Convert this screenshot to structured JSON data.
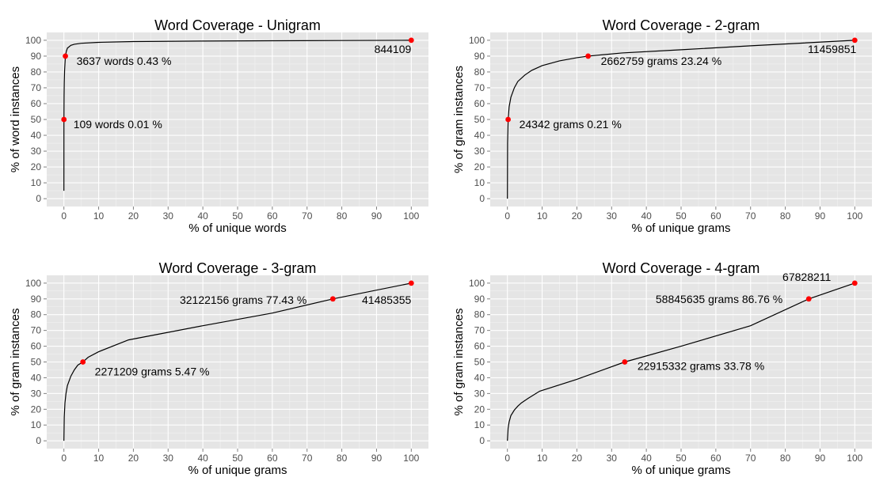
{
  "chart_data": [
    {
      "type": "line",
      "title": "Word Coverage - Unigram",
      "xlabel": "% of unique words",
      "ylabel": "% of word instances",
      "xlim": [
        0,
        100
      ],
      "ylim": [
        0,
        100
      ],
      "xticks": [
        0,
        10,
        20,
        30,
        40,
        50,
        60,
        70,
        80,
        90,
        100
      ],
      "yticks": [
        0,
        10,
        20,
        30,
        40,
        50,
        60,
        70,
        80,
        90,
        100
      ],
      "grid": true,
      "curve": {
        "x": [
          0,
          0.01,
          0.05,
          0.1,
          0.2,
          0.43,
          0.7,
          1,
          2,
          3,
          5,
          10,
          20,
          40,
          60,
          80,
          100
        ],
        "y": [
          5,
          50,
          65,
          73,
          81,
          90,
          93,
          95,
          96.8,
          97.5,
          98.1,
          98.7,
          99.2,
          99.5,
          99.7,
          99.85,
          100
        ]
      },
      "points": [
        {
          "x": 0.01,
          "y": 50,
          "label": "109 words 0.01 %",
          "anchor": "start"
        },
        {
          "x": 0.43,
          "y": 90,
          "label": "3637 words 0.43 %",
          "anchor": "start"
        },
        {
          "x": 100,
          "y": 100,
          "label": "844109",
          "anchor": "end"
        }
      ]
    },
    {
      "type": "line",
      "title": "Word Coverage - 2-gram",
      "xlabel": "% of unique grams",
      "ylabel": "% of gram instances",
      "xlim": [
        0,
        100
      ],
      "ylim": [
        0,
        100
      ],
      "xticks": [
        0,
        10,
        20,
        30,
        40,
        50,
        60,
        70,
        80,
        90,
        100
      ],
      "yticks": [
        0,
        10,
        20,
        30,
        40,
        50,
        60,
        70,
        80,
        90,
        100
      ],
      "grid": true,
      "curve": {
        "x": [
          0,
          0.05,
          0.21,
          0.5,
          1,
          2,
          3,
          5,
          7,
          10,
          15,
          20,
          23.24,
          33,
          50,
          70,
          100
        ],
        "y": [
          0,
          35,
          50,
          58,
          64,
          70,
          74,
          78,
          81,
          84,
          87,
          89,
          90,
          92,
          94,
          96.5,
          100
        ]
      },
      "points": [
        {
          "x": 0.21,
          "y": 50,
          "label": "24342 grams 0.21 %",
          "anchor": "start"
        },
        {
          "x": 23.24,
          "y": 90,
          "label": "2662759 grams 23.24 %",
          "anchor": "start"
        },
        {
          "x": 100,
          "y": 100,
          "label": "11459851",
          "anchor": "end"
        }
      ]
    },
    {
      "type": "line",
      "title": "Word Coverage - 3-gram",
      "xlabel": "% of unique grams",
      "ylabel": "% of gram instances",
      "xlim": [
        0,
        100
      ],
      "ylim": [
        0,
        100
      ],
      "xticks": [
        0,
        10,
        20,
        30,
        40,
        50,
        60,
        70,
        80,
        90,
        100
      ],
      "yticks": [
        0,
        10,
        20,
        30,
        40,
        50,
        60,
        70,
        80,
        90,
        100
      ],
      "grid": true,
      "curve": {
        "x": [
          0,
          0.1,
          0.3,
          0.6,
          1,
          2,
          3,
          4,
          5.47,
          7,
          10,
          18.6,
          40,
          60,
          77.43,
          100
        ],
        "y": [
          0,
          15,
          24,
          30,
          35,
          41,
          45,
          48,
          50,
          53,
          56.5,
          64,
          73,
          81,
          90,
          100
        ]
      },
      "points": [
        {
          "x": 5.47,
          "y": 50,
          "label": "2271209 grams 5.47 %",
          "anchor": "start"
        },
        {
          "x": 77.43,
          "y": 90,
          "label": "32122156 grams 77.43 %",
          "anchor": "end"
        },
        {
          "x": 100,
          "y": 100,
          "label": "41485355",
          "anchor": "end"
        }
      ]
    },
    {
      "type": "line",
      "title": "Word Coverage - 4-gram",
      "xlabel": "% of unique grams",
      "ylabel": "% of gram instances",
      "xlim": [
        0,
        100
      ],
      "ylim": [
        0,
        100
      ],
      "xticks": [
        0,
        10,
        20,
        30,
        40,
        50,
        60,
        70,
        80,
        90,
        100
      ],
      "yticks": [
        0,
        10,
        20,
        30,
        40,
        50,
        60,
        70,
        80,
        90,
        100
      ],
      "grid": true,
      "curve": {
        "x": [
          0,
          0.2,
          0.5,
          1,
          2,
          3,
          4,
          6,
          9.3,
          20,
          33.78,
          50,
          70,
          86.76,
          100
        ],
        "y": [
          0,
          8,
          12,
          16,
          19.5,
          22,
          24,
          27,
          31.5,
          39,
          50,
          60,
          73,
          90,
          100
        ]
      },
      "points": [
        {
          "x": 33.78,
          "y": 50,
          "label": "22915332 grams 33.78 %",
          "anchor": "start"
        },
        {
          "x": 86.76,
          "y": 90,
          "label": "58845635 grams 86.76 %",
          "anchor": "end"
        },
        {
          "x": 100,
          "y": 100,
          "label": "67828211",
          "anchor": "end"
        }
      ]
    }
  ]
}
